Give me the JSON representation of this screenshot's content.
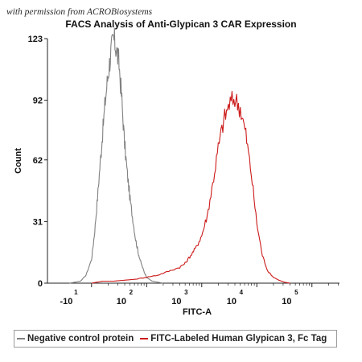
{
  "watermark": "with permission from ACROBiosystems",
  "chart_data": {
    "type": "line",
    "title": "FACS Analysis of Anti-Glypican 3 CAR Expression",
    "xlabel": "FITC-A",
    "ylabel": "Count",
    "ylim": [
      0,
      123
    ],
    "yticks": [
      0,
      31,
      62,
      92,
      123
    ],
    "x_scale": "biexponential (log decades)",
    "x_range_decades": [
      0.2,
      5.5
    ],
    "xtick_labels": [
      {
        "base": "-10",
        "exp": "1",
        "decade": 0.6
      },
      {
        "base": "10",
        "exp": "2",
        "decade": 1.6
      },
      {
        "base": "10",
        "exp": "3",
        "decade": 2.6
      },
      {
        "base": "10",
        "exp": "4",
        "decade": 3.6
      },
      {
        "base": "10",
        "exp": "5",
        "decade": 4.6
      }
    ],
    "legend_position": "bottom",
    "series": [
      {
        "name": "Negative control protein",
        "color": "#808080",
        "x": [
          0.6,
          0.8,
          0.9,
          1.0,
          1.05,
          1.1,
          1.15,
          1.2,
          1.25,
          1.3,
          1.35,
          1.4,
          1.45,
          1.5,
          1.55,
          1.6,
          1.65,
          1.7,
          1.75,
          1.8,
          1.85,
          1.9,
          1.95,
          2.0,
          2.1,
          2.2,
          2.3
        ],
        "y": [
          0,
          1,
          4,
          12,
          24,
          40,
          58,
          75,
          92,
          105,
          116,
          123,
          118,
          110,
          92,
          70,
          55,
          42,
          32,
          22,
          15,
          10,
          6,
          3,
          1,
          0.5,
          0
        ]
      },
      {
        "name": "FITC-Labeled Human Glypican 3, Fc Tag",
        "color": "#cc1a1a",
        "x": [
          1.0,
          1.2,
          1.4,
          1.6,
          1.8,
          2.0,
          2.2,
          2.4,
          2.6,
          2.7,
          2.8,
          2.9,
          3.0,
          3.1,
          3.2,
          3.3,
          3.4,
          3.5,
          3.6,
          3.7,
          3.8,
          3.9,
          4.0,
          4.1,
          4.2,
          4.3,
          4.4,
          4.5,
          4.6
        ],
        "y": [
          0,
          1,
          1,
          1.5,
          2,
          3,
          4,
          6,
          8,
          10,
          14,
          18,
          24,
          34,
          50,
          68,
          82,
          90,
          93,
          88,
          75,
          55,
          30,
          14,
          6,
          3,
          1.5,
          0.5,
          0
        ]
      }
    ]
  }
}
